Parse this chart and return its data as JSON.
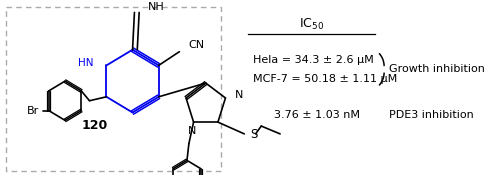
{
  "bg_color": "#ffffff",
  "blue": "#0000ee",
  "black": "#000000",
  "gray": "#999999",
  "hela_text": "Hela = 34.3 ± 2.6 μM",
  "mcf7_text": "MCF-7 = 50.18 ± 1.11 μM",
  "pde3_text": "3.76 ± 1.03 nM",
  "growth_label": "Growth inhibition",
  "pde3_label": "PDE3 inhibition",
  "compound_label": "120",
  "figsize": [
    5.0,
    1.76
  ],
  "dpi": 100
}
